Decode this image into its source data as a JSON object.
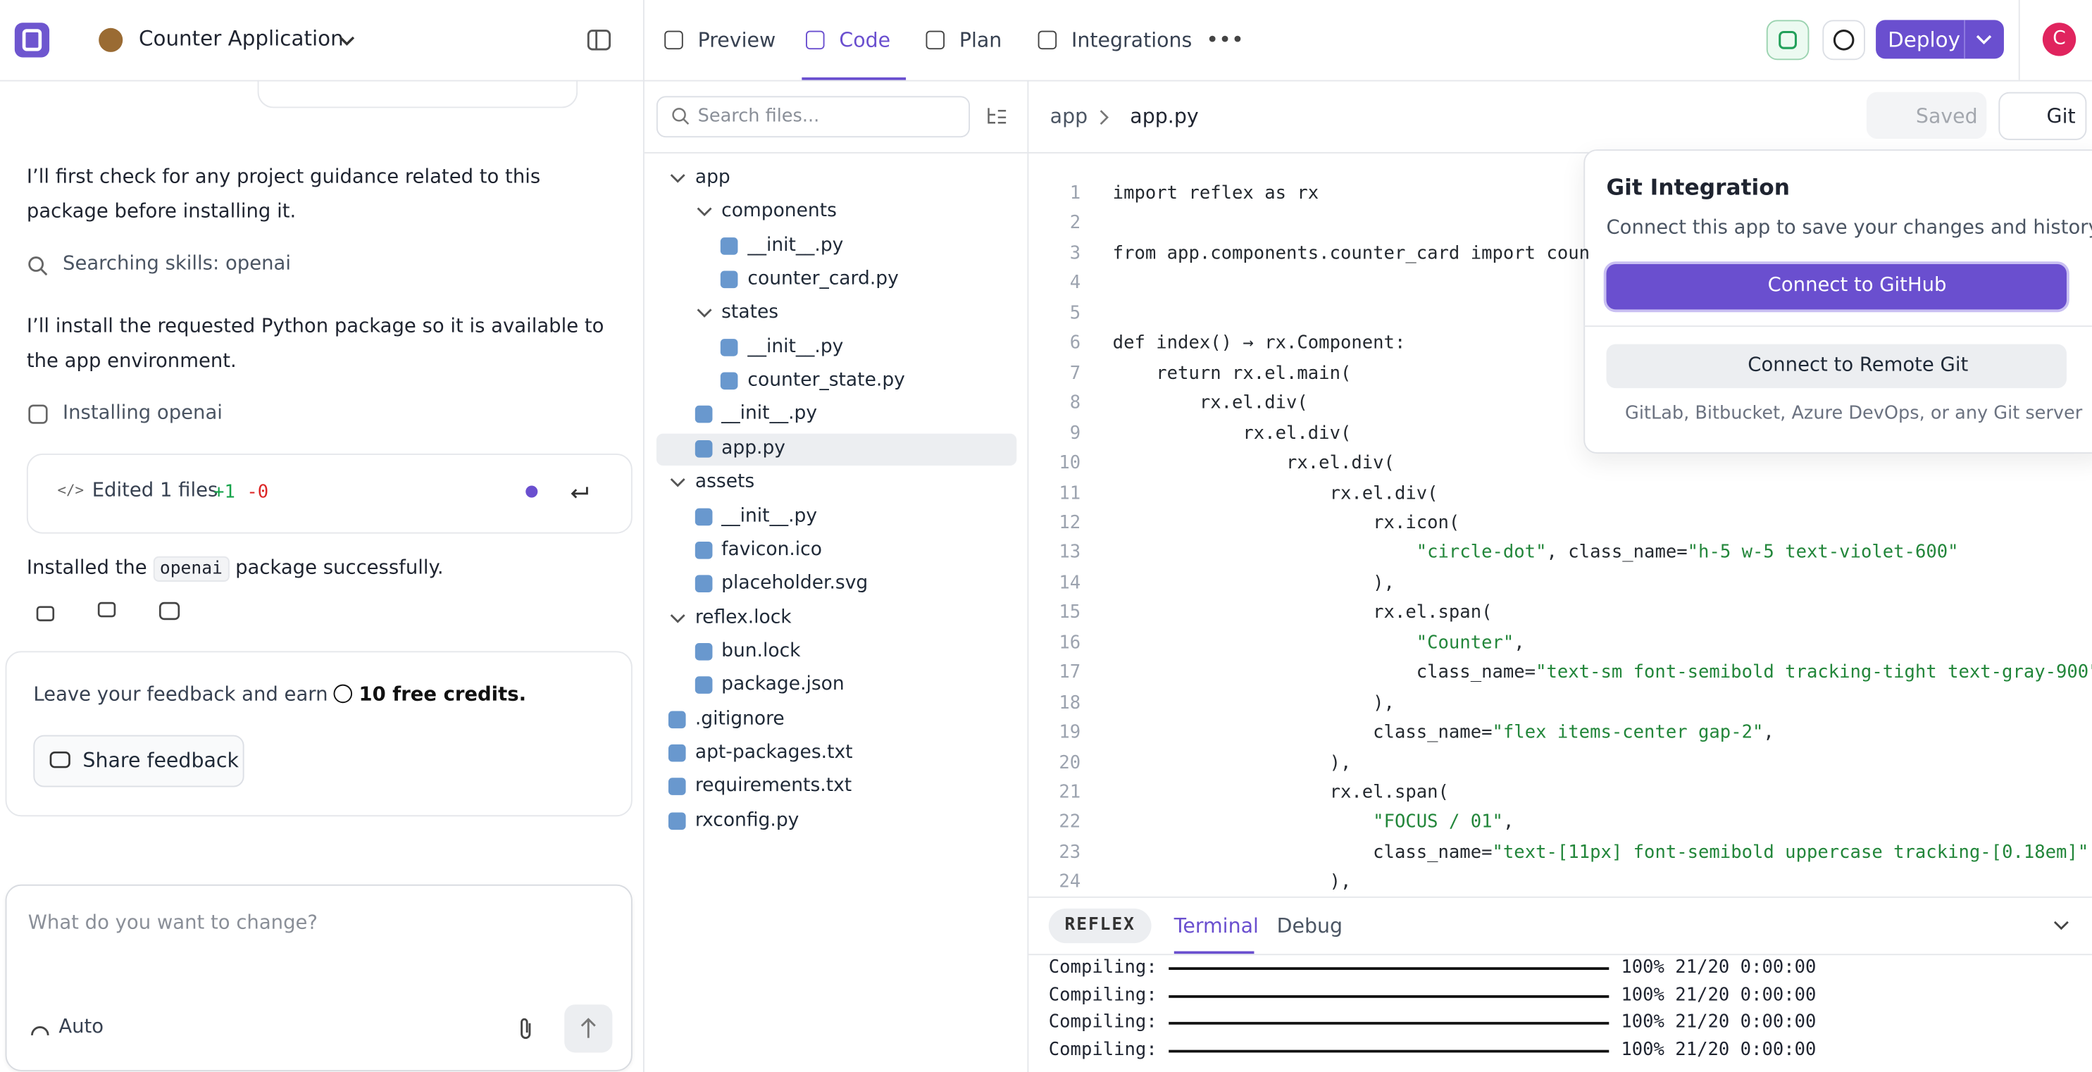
{
  "topbar": {
    "project": "Counter Application",
    "tabs": [
      "Preview",
      "Code",
      "Plan",
      "Integrations"
    ],
    "active_tab": 1,
    "deploy": "Deploy",
    "avatar": "C"
  },
  "chat": {
    "msg1": "I’ll first check for any project guidance related to this package before installing it.",
    "step1": "Searching skills: openai",
    "msg2": "I’ll install the requested Python package so it is available to the app environment.",
    "step2": "Installing openai",
    "edit": {
      "label": "Edited 1 files",
      "added": "+1",
      "removed": "-0"
    },
    "result": [
      "Installed the",
      "openai",
      "package successfully."
    ],
    "feedback": {
      "text": "Leave your feedback and earn",
      "credits": "10 free credits.",
      "button": "Share feedback"
    },
    "input": {
      "placeholder": "What do you want to change?",
      "mode": "Auto"
    }
  },
  "files": {
    "search": "Search files...",
    "selected": 8,
    "tree": [
      {
        "name": "app",
        "level": 0,
        "folder": true
      },
      {
        "name": "components",
        "level": 1,
        "folder": true
      },
      {
        "name": "__init__.py",
        "level": 2
      },
      {
        "name": "counter_card.py",
        "level": 2
      },
      {
        "name": "states",
        "level": 1,
        "folder": true
      },
      {
        "name": "__init__.py",
        "level": 2
      },
      {
        "name": "counter_state.py",
        "level": 2
      },
      {
        "name": "__init__.py",
        "level": 1
      },
      {
        "name": "app.py",
        "level": 1
      },
      {
        "name": "assets",
        "level": 0,
        "folder": true
      },
      {
        "name": "__init__.py",
        "level": 1
      },
      {
        "name": "favicon.ico",
        "level": 1
      },
      {
        "name": "placeholder.svg",
        "level": 1
      },
      {
        "name": "reflex.lock",
        "level": 0,
        "folder": true
      },
      {
        "name": "bun.lock",
        "level": 1
      },
      {
        "name": "package.json",
        "level": 1
      },
      {
        "name": ".gitignore",
        "level": 0
      },
      {
        "name": "apt-packages.txt",
        "level": 0
      },
      {
        "name": "requirements.txt",
        "level": 0
      },
      {
        "name": "rxconfig.py",
        "level": 0
      }
    ]
  },
  "editor": {
    "breadcrumb": [
      "app",
      "app.py"
    ],
    "saved": "Saved",
    "git": "Git",
    "lines": [
      {
        "n": 1,
        "text": "import reflex as rx"
      },
      {
        "n": 2
      },
      {
        "n": 3,
        "text": "from app.components.counter_card import coun"
      },
      {
        "n": 4
      },
      {
        "n": 5
      },
      {
        "n": 6,
        "text": "def index() → rx.Component:"
      },
      {
        "n": 7,
        "text": "    return rx.el.main("
      },
      {
        "n": 8,
        "text": "        rx.el.div("
      },
      {
        "n": 9,
        "text": "            rx.el.div("
      },
      {
        "n": 10,
        "text": "                rx.el.div("
      },
      {
        "n": 11,
        "text": "                    rx.el.div("
      },
      {
        "n": 12,
        "text": "                        rx.icon("
      },
      {
        "n": 13,
        "text": "                            \"circle-dot\", class_name=\"h-5 w-5 text-violet-600\""
      },
      {
        "n": 14,
        "text": "                        ),"
      },
      {
        "n": 15,
        "text": "                        rx.el.span("
      },
      {
        "n": 16,
        "text": "                            \"Counter\","
      },
      {
        "n": 17,
        "text": "                            class_name=\"text-sm font-semibold tracking-tight text-gray-900\""
      },
      {
        "n": 18,
        "text": "                        ),"
      },
      {
        "n": 19,
        "text": "                        class_name=\"flex items-center gap-2\","
      },
      {
        "n": 20,
        "text": "                    ),"
      },
      {
        "n": 21,
        "text": "                    rx.el.span("
      },
      {
        "n": 22,
        "text": "                        \"FOCUS / 01\","
      },
      {
        "n": 23,
        "text": "                        class_name=\"text-[11px] font-semibold uppercase tracking-[0.18em]\""
      },
      {
        "n": 24,
        "text": "                    ),"
      }
    ]
  },
  "git_popup": {
    "title": "Git Integration",
    "description": "Connect this app to save your changes and history.",
    "github": "Connect to GitHub",
    "remote": "Connect to Remote Git",
    "note": "GitLab, Bitbucket, Azure DevOps, or any Git server"
  },
  "terminal": {
    "badge": "REFLEX",
    "tabs": [
      "Terminal",
      "Debug"
    ],
    "lines": [
      {
        "label": "Compiling:",
        "status": "100% 21/20 0:00:00"
      },
      {
        "label": "Compiling:",
        "status": "100% 21/20 0:00:00"
      },
      {
        "label": "Compiling:",
        "status": "100% 21/20 0:00:00"
      },
      {
        "label": "Compiling:",
        "status": "100% 21/20 0:00:00"
      }
    ]
  }
}
